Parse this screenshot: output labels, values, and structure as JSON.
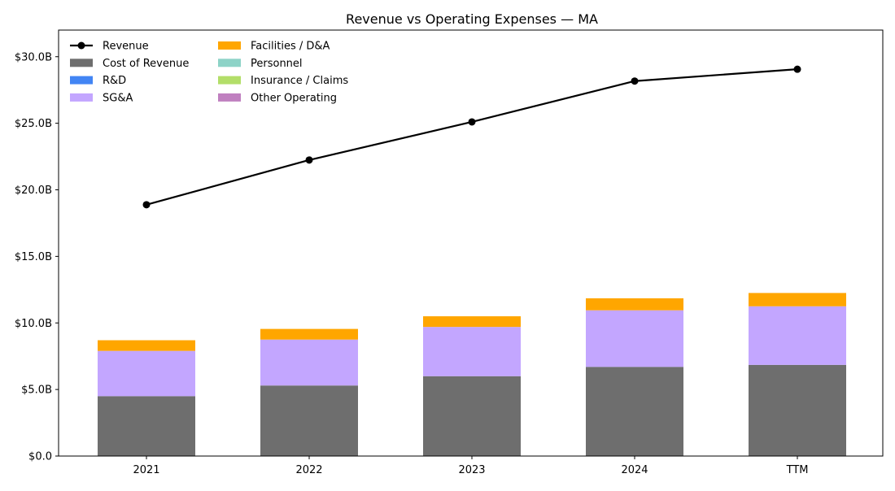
{
  "chart_data": {
    "type": "bar",
    "title": "Revenue vs Operating Expenses — MA",
    "xlabel": "",
    "ylabel": "",
    "categories": [
      "2021",
      "2022",
      "2023",
      "2024",
      "TTM"
    ],
    "ylim": [
      0,
      32
    ],
    "y_unit": "billions USD",
    "yticks": [
      0,
      5,
      10,
      15,
      20,
      25,
      30
    ],
    "ytick_labels": [
      "$0.0",
      "$5.0B",
      "$10.0B",
      "$15.0B",
      "$20.0B",
      "$25.0B",
      "$30.0B"
    ],
    "grid": false,
    "legend_position": "top-left",
    "legend_columns": 2,
    "line_series": {
      "name": "Revenue",
      "color": "#000000",
      "values": [
        18.88,
        22.24,
        25.1,
        28.17,
        29.06
      ]
    },
    "stacked_series": [
      {
        "name": "Cost of Revenue",
        "color": "#6e6e6e",
        "values": [
          4.5,
          5.3,
          6.0,
          6.7,
          6.85
        ]
      },
      {
        "name": "R&D",
        "color": "#4285f4",
        "values": [
          0,
          0,
          0,
          0,
          0
        ]
      },
      {
        "name": "SG&A",
        "color": "#c3a6ff",
        "values": [
          3.4,
          3.45,
          3.7,
          4.25,
          4.4
        ]
      },
      {
        "name": "Facilities / D&A",
        "color": "#ffa600",
        "values": [
          0.8,
          0.8,
          0.8,
          0.9,
          1.0
        ]
      },
      {
        "name": "Personnel",
        "color": "#8dd3c7",
        "values": [
          0,
          0,
          0,
          0,
          0
        ]
      },
      {
        "name": "Insurance / Claims",
        "color": "#b3de69",
        "values": [
          0,
          0,
          0,
          0,
          0
        ]
      },
      {
        "name": "Other Operating",
        "color": "#c080c0",
        "values": [
          0,
          0,
          0,
          0,
          0
        ]
      }
    ]
  }
}
